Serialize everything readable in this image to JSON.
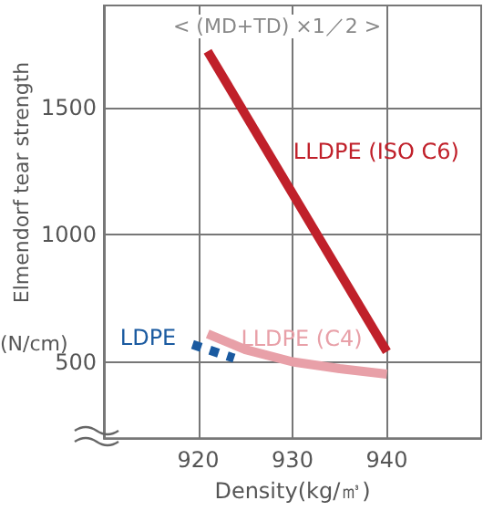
{
  "chart_data": {
    "type": "line",
    "title": "< (MD+TD) ×1／2 >",
    "xlabel": "Density(kg/㎥)",
    "ylabel": "Elmendorf tear strength",
    "annotations": [
      "(N/cm)"
    ],
    "xlim": [
      910,
      950
    ],
    "xticks": [
      920,
      930,
      940
    ],
    "ylim": [
      200,
      1900
    ],
    "yticks": [
      500,
      1000,
      1500
    ],
    "grid": true,
    "legend": false,
    "marker": "none",
    "series": [
      {
        "name": "LLDPE (ISO C6)",
        "color": "#c0202a",
        "x": [
          921,
          940
        ],
        "values": [
          1720,
          540
        ],
        "line_style": "solid"
      },
      {
        "name": "LLDPE (C4)",
        "color": "#e8a0a8",
        "x": [
          921,
          925,
          930,
          935,
          940
        ],
        "values": [
          610,
          548,
          500,
          473,
          452
        ],
        "line_style": "solid"
      },
      {
        "name": "LDPE",
        "color": "#1a5aa0",
        "x": [
          919.4,
          923.8
        ],
        "values": [
          568,
          514
        ],
        "line_style": "dotted"
      }
    ]
  }
}
